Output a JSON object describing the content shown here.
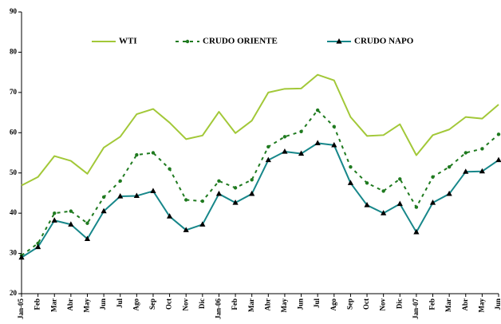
{
  "chart_data": {
    "type": "line",
    "categories": [
      "Jan-05",
      "Feb",
      "Mar",
      "Abr",
      "May",
      "Jun",
      "Jul",
      "Ago",
      "Sep",
      "Oct",
      "Nov",
      "Dic",
      "Jan-06",
      "Feb",
      "Mar",
      "Abr",
      "May",
      "Jun",
      "Jul",
      "Ago",
      "Sep",
      "Oct",
      "Nov",
      "Dic",
      "Jan-07",
      "Feb",
      "Mar",
      "Abr",
      "May",
      "Jun"
    ],
    "series": [
      {
        "name": "WTI",
        "color": "#a2c838",
        "values": [
          46.9,
          49,
          54.2,
          53,
          49.8,
          56.3,
          59,
          64.6,
          65.9,
          62.5,
          58.4,
          59.3,
          65.2,
          59.9,
          63,
          70,
          70.9,
          71,
          74.4,
          73,
          63.9,
          59.2,
          59.4,
          62.1,
          54.4,
          59.4,
          60.8,
          63.9,
          63.5,
          67
        ]
      },
      {
        "name": "CRUDO ORIENTE",
        "color": "#1f7a1f",
        "values": [
          29.5,
          32.5,
          40,
          40.5,
          37.5,
          44,
          48,
          54.5,
          55,
          51,
          43.3,
          43,
          48,
          46.3,
          48.3,
          56.5,
          59,
          60.3,
          65.6,
          61.5,
          51.5,
          47.5,
          45.5,
          48.5,
          41.5,
          49,
          51.5,
          55,
          56,
          59.6
        ]
      },
      {
        "name": "CRUDO NAPO",
        "color": "#17878a",
        "values": [
          29,
          31.6,
          38.2,
          37.2,
          33.6,
          40.5,
          44.2,
          44.3,
          45.5,
          39.2,
          35.8,
          37.2,
          44.8,
          42.6,
          44.8,
          53.2,
          55.3,
          54.8,
          57.4,
          56.9,
          47.5,
          42,
          40,
          42.3,
          35.3,
          42.6,
          44.8,
          50.3,
          50.4,
          53.2
        ]
      }
    ],
    "ylim": [
      20,
      90
    ],
    "yticks": [
      20,
      30,
      40,
      50,
      60,
      70,
      80,
      90
    ]
  }
}
